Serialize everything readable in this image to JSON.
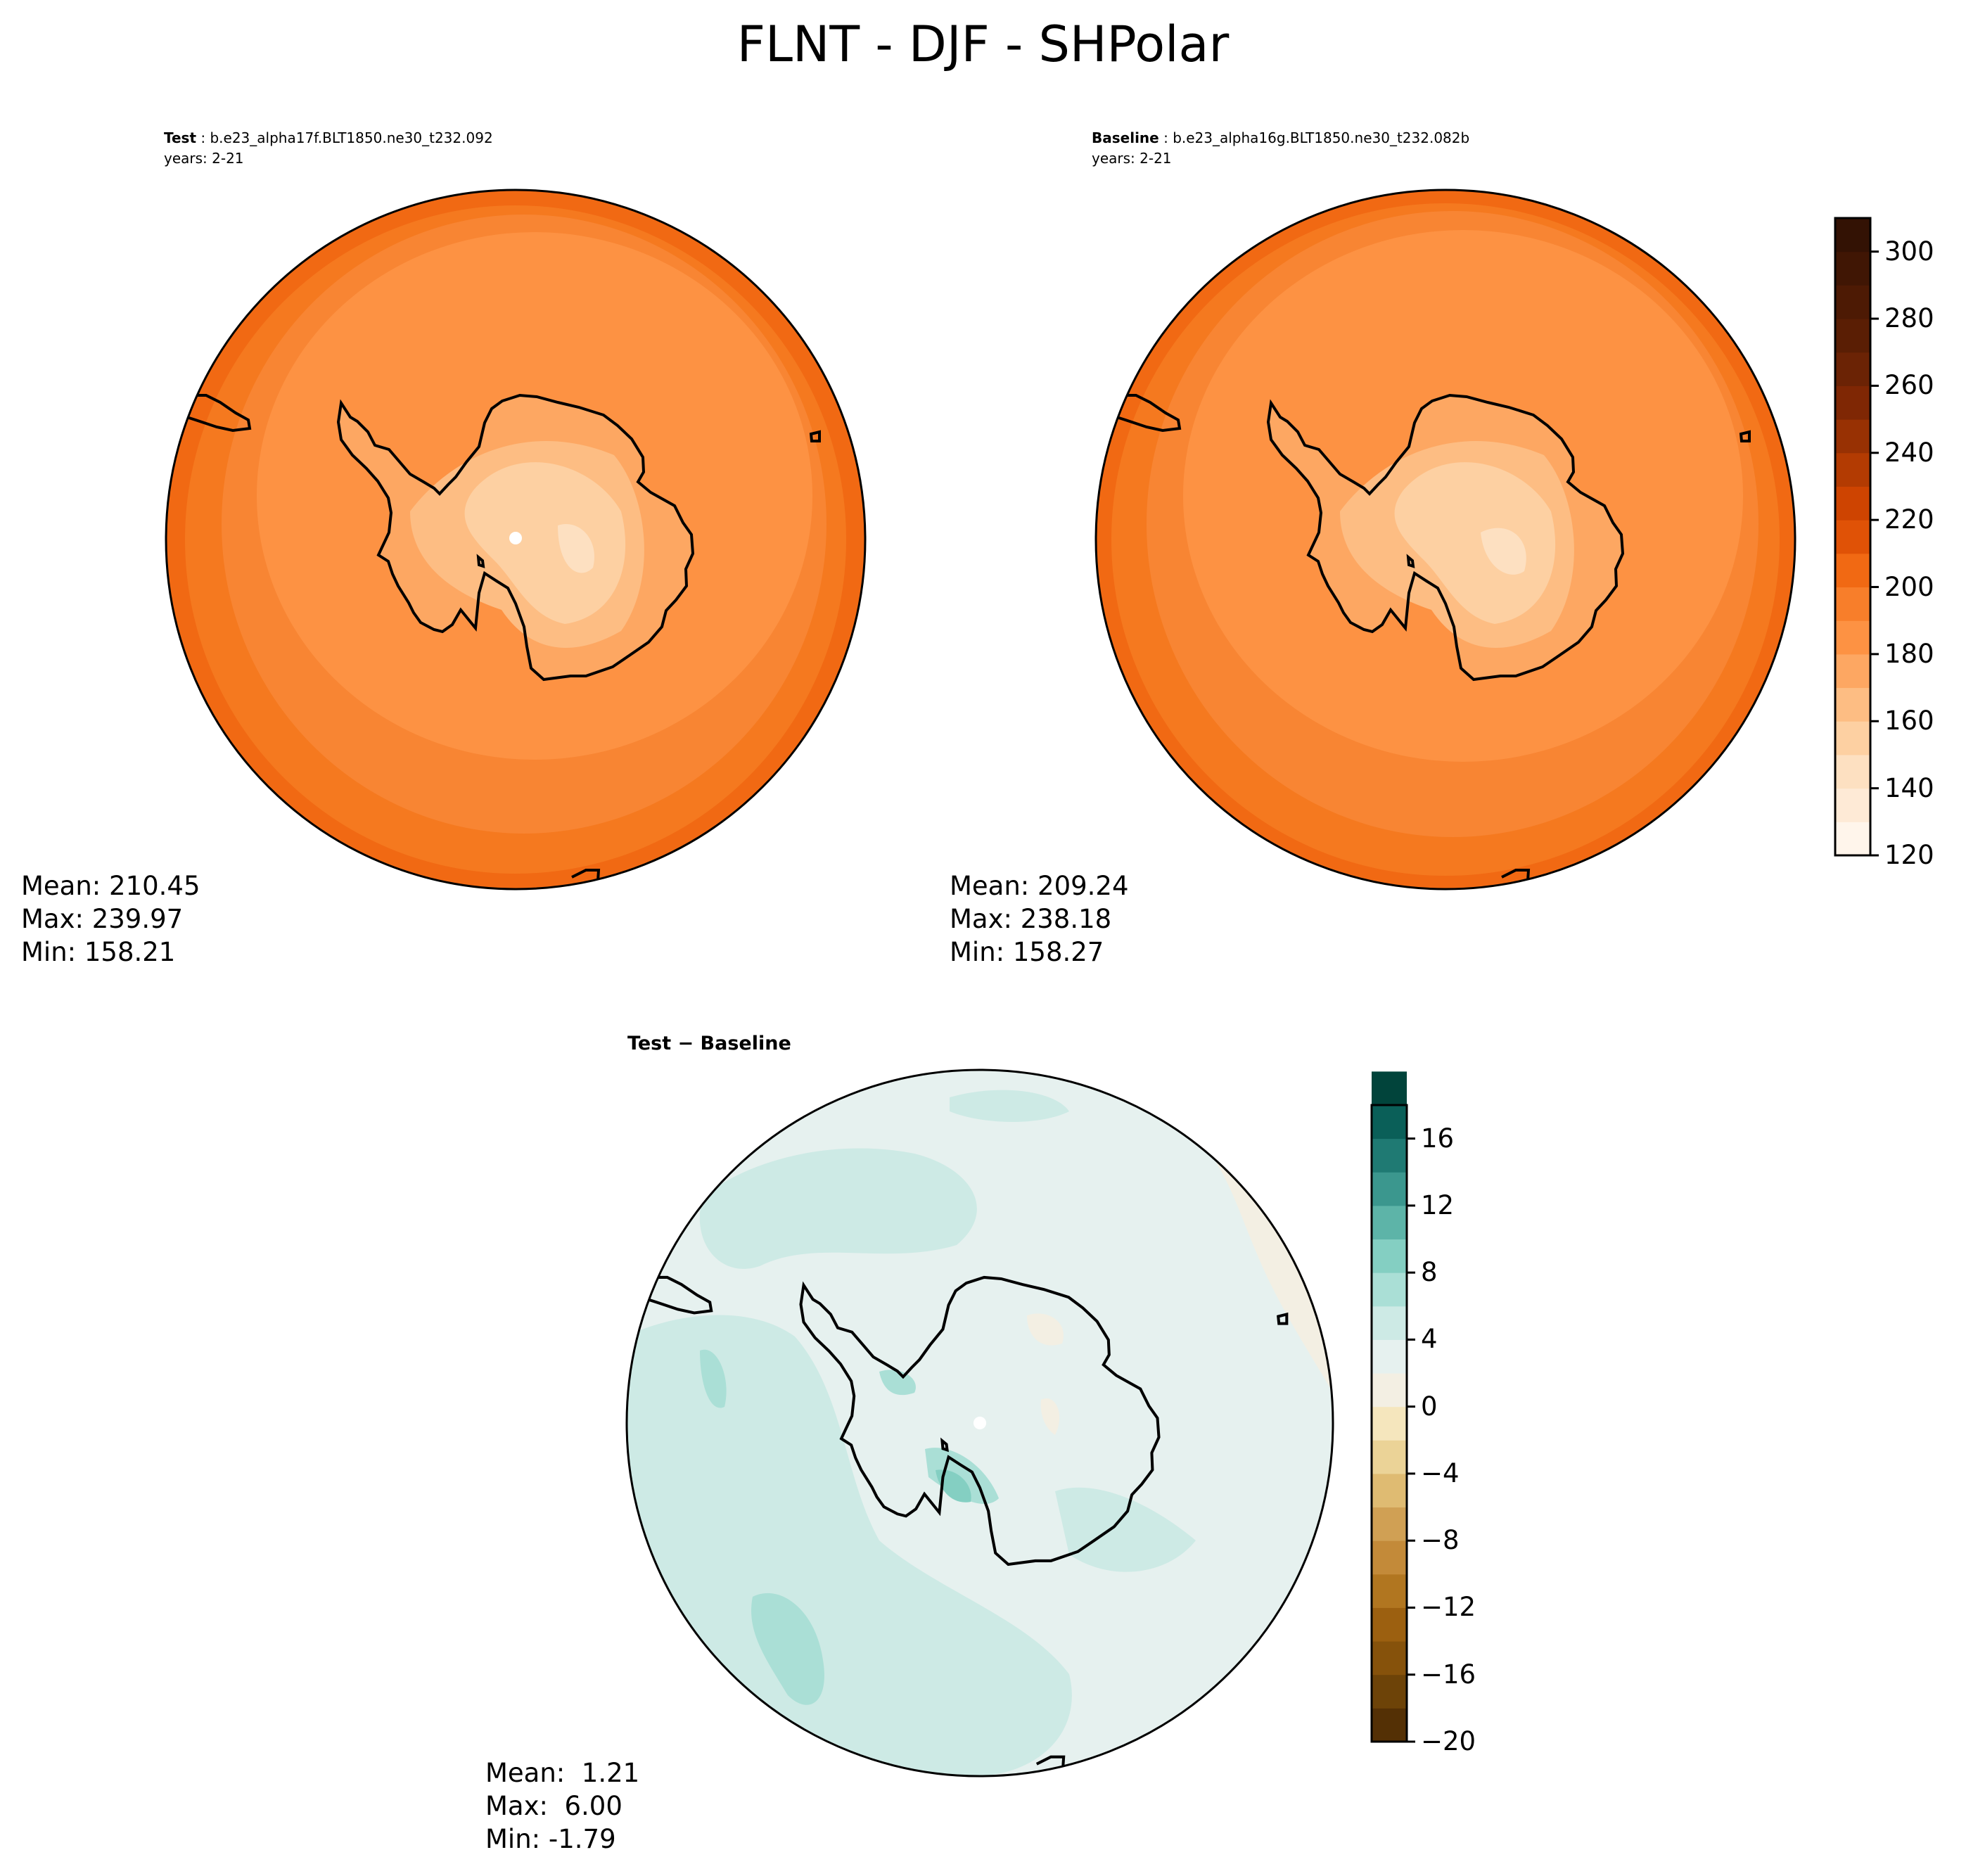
{
  "title": "FLNT - DJF - SHPolar",
  "panels": [
    {
      "label": "Test",
      "case": "b.e23_alpha17f.BLT1850.ne30_t232.092",
      "years": "years: 2-21",
      "stats": {
        "mean": "Mean: 210.45",
        "max": "Max: 239.97",
        "min": "Min: 158.21"
      }
    },
    {
      "label": "Baseline",
      "case": "b.e23_alpha16g.BLT1850.ne30_t232.082b",
      "years": "years: 2-21",
      "stats": {
        "mean": "Mean: 209.24",
        "max": "Max: 238.18",
        "min": "Min: 158.27"
      }
    },
    {
      "label": "Test − Baseline",
      "stats": {
        "mean": "Mean:  1.21",
        "max": "Max:  6.00",
        "min": "Min: -1.79"
      }
    }
  ],
  "colorbars": {
    "main": {
      "ticks": [
        "120",
        "140",
        "160",
        "180",
        "200",
        "220",
        "240",
        "260",
        "280",
        "300"
      ],
      "range": [
        120,
        310
      ],
      "step": 10,
      "colors": [
        "#fff5eb",
        "#feead6",
        "#fde0c1",
        "#fdd0a2",
        "#fdbd83",
        "#fda762",
        "#fd9243",
        "#f87e2a",
        "#f16913",
        "#e05206",
        "#ce4401",
        "#b33b02",
        "#983103",
        "#7f2704",
        "#6b2305",
        "#5a1e04",
        "#4d1a04",
        "#401604",
        "#331204"
      ]
    },
    "diff": {
      "ticks": [
        "−20",
        "−16",
        "−12",
        "−8",
        "−4",
        "0",
        "4",
        "8",
        "12",
        "16"
      ],
      "range": [
        -20,
        18
      ],
      "step": 2,
      "colors": [
        "#543005",
        "#6d4308",
        "#86520b",
        "#9c6010",
        "#b17620",
        "#c38a39",
        "#d0a054",
        "#dfbb72",
        "#ebd397",
        "#f5e6bd",
        "#f3efe3",
        "#e6f1ef",
        "#cdeae5",
        "#aadfd6",
        "#84cfc2",
        "#5db4a8",
        "#3b978e",
        "#1f7a73",
        "#0a5f58",
        "#01443b"
      ]
    }
  },
  "chart_data": [
    {
      "type": "heatmap",
      "subtype": "polar-stereographic-contour",
      "title": "Test",
      "subtitle": "b.e23_alpha17f.BLT1850.ne30_t232.092",
      "years": "2-21",
      "levels": [
        120,
        310
      ],
      "mean": 210.45,
      "max": 239.97,
      "min": 158.21
    },
    {
      "type": "heatmap",
      "subtype": "polar-stereographic-contour",
      "title": "Baseline",
      "subtitle": "b.e23_alpha16g.BLT1850.ne30_t232.082b",
      "years": "2-21",
      "levels": [
        120,
        310
      ],
      "mean": 209.24,
      "max": 238.18,
      "min": 158.27
    },
    {
      "type": "heatmap",
      "subtype": "polar-stereographic-contour",
      "title": "Test − Baseline",
      "levels": [
        -20,
        18
      ],
      "mean": 1.21,
      "max": 6.0,
      "min": -1.79
    }
  ]
}
